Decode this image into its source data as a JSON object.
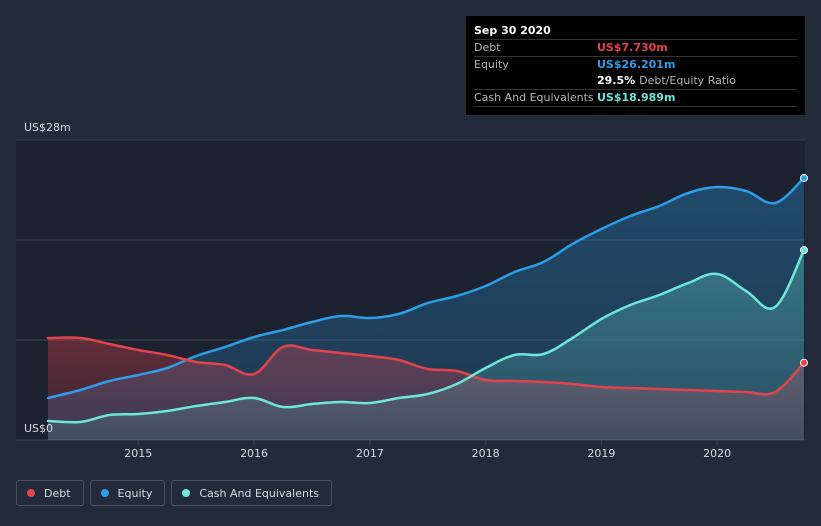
{
  "colors": {
    "background": "#232b3a",
    "plot_bg": "#1c222f",
    "debt": "#e4424e",
    "equity": "#2d9ee8",
    "cash": "#6ce7d8",
    "grid": "#3a4250",
    "text": "#d8dbe0"
  },
  "tooltip": {
    "date": "Sep 30 2020",
    "debt_label": "Debt",
    "debt_value": "US$7.730m",
    "equity_label": "Equity",
    "equity_value": "US$26.201m",
    "ratio_value": "29.5%",
    "ratio_label": "Debt/Equity Ratio",
    "cash_label": "Cash And Equivalents",
    "cash_value": "US$18.989m"
  },
  "legend": {
    "debt": "Debt",
    "equity": "Equity",
    "cash": "Cash And Equivalents"
  },
  "chart_data": {
    "type": "area",
    "title": "",
    "xlabel": "",
    "ylabel": "",
    "y_top_label": "US$28m",
    "y_bottom_label": "US$0",
    "ylim": [
      0,
      28
    ],
    "xlim": [
      2014.22,
      2020.75
    ],
    "x_ticks": [
      2015,
      2016,
      2017,
      2018,
      2019,
      2020
    ],
    "x_tick_labels": [
      "2015",
      "2016",
      "2017",
      "2018",
      "2019",
      "2020"
    ],
    "grid": true,
    "legend_position": "bottom-left",
    "series": [
      {
        "name": "Debt",
        "key": "debt",
        "points": [
          [
            2014.22,
            10.2
          ],
          [
            2014.5,
            10.2
          ],
          [
            2014.75,
            9.6
          ],
          [
            2015.0,
            9.0
          ],
          [
            2015.25,
            8.5
          ],
          [
            2015.5,
            7.8
          ],
          [
            2015.75,
            7.5
          ],
          [
            2016.0,
            6.6
          ],
          [
            2016.25,
            9.3
          ],
          [
            2016.5,
            9.0
          ],
          [
            2016.75,
            8.7
          ],
          [
            2017.0,
            8.4
          ],
          [
            2017.25,
            8.0
          ],
          [
            2017.5,
            7.1
          ],
          [
            2017.75,
            6.9
          ],
          [
            2018.0,
            6.0
          ],
          [
            2018.25,
            5.9
          ],
          [
            2018.5,
            5.8
          ],
          [
            2018.75,
            5.6
          ],
          [
            2019.0,
            5.3
          ],
          [
            2019.25,
            5.2
          ],
          [
            2019.5,
            5.1
          ],
          [
            2019.75,
            5.0
          ],
          [
            2020.0,
            4.9
          ],
          [
            2020.25,
            4.8
          ],
          [
            2020.5,
            4.8
          ],
          [
            2020.75,
            7.73
          ]
        ]
      },
      {
        "name": "Equity",
        "key": "equity",
        "points": [
          [
            2014.22,
            4.2
          ],
          [
            2014.5,
            5.0
          ],
          [
            2014.75,
            5.9
          ],
          [
            2015.0,
            6.5
          ],
          [
            2015.25,
            7.2
          ],
          [
            2015.5,
            8.4
          ],
          [
            2015.75,
            9.3
          ],
          [
            2016.0,
            10.3
          ],
          [
            2016.25,
            11.0
          ],
          [
            2016.5,
            11.8
          ],
          [
            2016.75,
            12.4
          ],
          [
            2017.0,
            12.2
          ],
          [
            2017.25,
            12.6
          ],
          [
            2017.5,
            13.7
          ],
          [
            2017.75,
            14.4
          ],
          [
            2018.0,
            15.4
          ],
          [
            2018.25,
            16.8
          ],
          [
            2018.5,
            17.8
          ],
          [
            2018.75,
            19.6
          ],
          [
            2019.0,
            21.1
          ],
          [
            2019.25,
            22.4
          ],
          [
            2019.5,
            23.4
          ],
          [
            2019.75,
            24.7
          ],
          [
            2020.0,
            25.3
          ],
          [
            2020.25,
            24.9
          ],
          [
            2020.5,
            23.7
          ],
          [
            2020.75,
            26.201
          ]
        ]
      },
      {
        "name": "Cash And Equivalents",
        "key": "cash",
        "points": [
          [
            2014.22,
            1.9
          ],
          [
            2014.5,
            1.8
          ],
          [
            2014.75,
            2.5
          ],
          [
            2015.0,
            2.6
          ],
          [
            2015.25,
            2.9
          ],
          [
            2015.5,
            3.4
          ],
          [
            2015.75,
            3.8
          ],
          [
            2016.0,
            4.2
          ],
          [
            2016.25,
            3.3
          ],
          [
            2016.5,
            3.6
          ],
          [
            2016.75,
            3.8
          ],
          [
            2017.0,
            3.7
          ],
          [
            2017.25,
            4.2
          ],
          [
            2017.5,
            4.6
          ],
          [
            2017.75,
            5.6
          ],
          [
            2018.0,
            7.2
          ],
          [
            2018.25,
            8.5
          ],
          [
            2018.5,
            8.6
          ],
          [
            2018.75,
            10.2
          ],
          [
            2019.0,
            12.1
          ],
          [
            2019.25,
            13.5
          ],
          [
            2019.5,
            14.5
          ],
          [
            2019.75,
            15.7
          ],
          [
            2020.0,
            16.6
          ],
          [
            2020.25,
            14.9
          ],
          [
            2020.5,
            13.3
          ],
          [
            2020.75,
            18.989
          ]
        ]
      }
    ]
  }
}
